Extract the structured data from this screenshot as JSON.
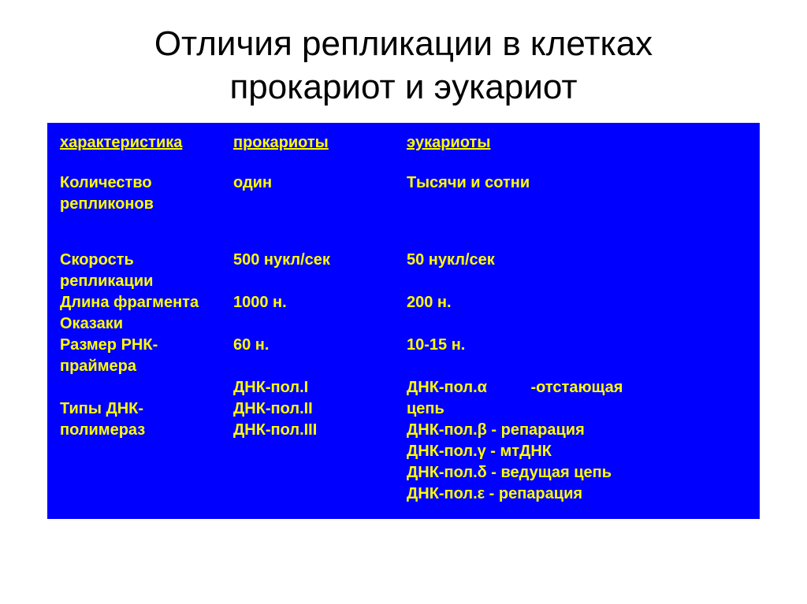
{
  "title_line1": "Отличия репликации в клетках",
  "title_line2": "прокариот и эукариот",
  "colors": {
    "table_bg": "#0000ff",
    "text": "#ffff00",
    "page_bg": "#ffffff",
    "title_color": "#000000"
  },
  "headers": {
    "c1": "характеристика",
    "c2": "прокариоты",
    "c3": "эукариоты"
  },
  "rows": {
    "replicons": {
      "label_l1": "Количество",
      "label_l2": "репликонов",
      "pro": "один",
      "euk": "Тысячи и сотни"
    },
    "speed": {
      "label_l1": "Скорость",
      "label_l2": "репликации",
      "pro": "500 нукл/сек",
      "euk": "50 нукл/сек"
    },
    "okazaki": {
      "label_l1": "Длина фрагмента",
      "label_l2": "Оказаки",
      "pro": "1000 н.",
      "euk": "200 н."
    },
    "primer": {
      "label_l1": "Размер РНК-",
      "label_l2": "праймера",
      "pro": "60 н.",
      "euk": "10-15 н."
    },
    "polymerases": {
      "label_l1": "Типы ДНК-",
      "label_l2": "полимераз",
      "pro_l1": "ДНК-пол.I",
      "pro_l2": "ДНК-пол.II",
      "pro_l3": "ДНК-пол.III",
      "euk_l1a": "ДНК-пол.α",
      "euk_l1b": "-отстающая",
      "euk_l2": "цепь",
      "euk_l3": "ДНК-пол.β - репарация",
      "euk_l4": "ДНК-пол.γ  - мтДНК",
      "euk_l5": "ДНК-пол.δ - ведущая цепь",
      "euk_l6": "ДНК-пол.ε - репарация"
    }
  }
}
